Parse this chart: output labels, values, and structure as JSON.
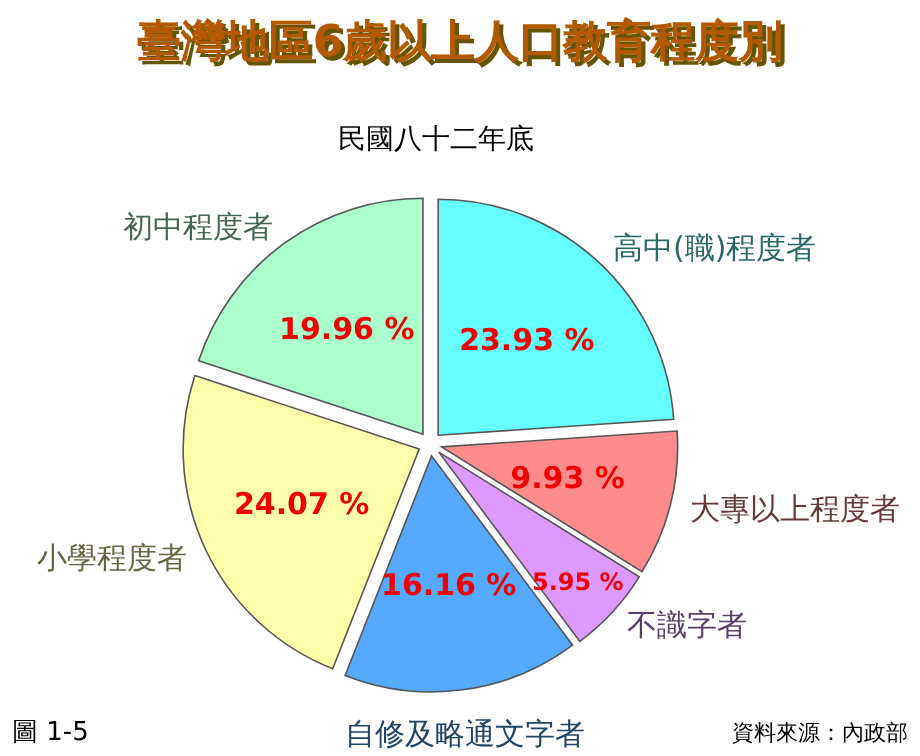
{
  "chart_data": {
    "type": "pie",
    "title": "臺灣地區6歲以上人口教育程度別",
    "subtitle": "民國八十二年底",
    "categories": [
      "高中(職)程度者",
      "大專以上程度者",
      "不識字者",
      "自修及略通文字者",
      "小學程度者",
      "初中程度者"
    ],
    "values": [
      23.93,
      9.93,
      5.95,
      16.16,
      24.07,
      19.96
    ],
    "value_labels": [
      "23.93 %",
      "9.93 %",
      "5.95 %",
      "16.16 %",
      "24.07 %",
      "19.96 %"
    ],
    "colors": [
      "#66ffff",
      "#ff8c8c",
      "#dd99ff",
      "#55aaff",
      "#ffffaa",
      "#aaffcc"
    ],
    "annotations": [
      "圖 1-5",
      "資料來源：內政部"
    ]
  }
}
